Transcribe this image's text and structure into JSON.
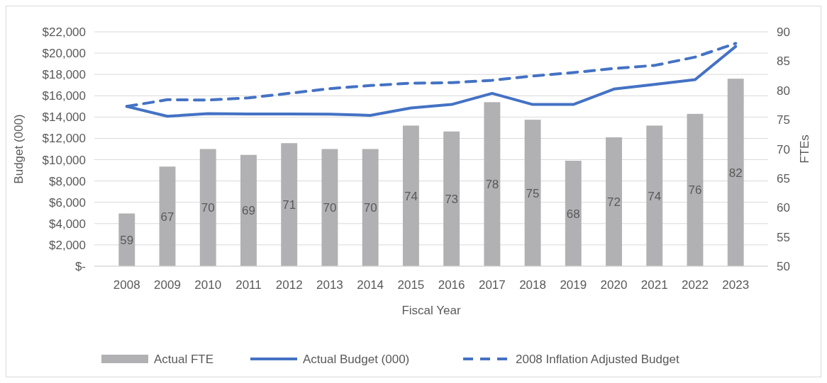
{
  "chart_data": {
    "type": "bar",
    "xlabel": "Fiscal Year",
    "ylabel": "Budget (000)",
    "y2label": "FTEs",
    "categories": [
      "2008",
      "2009",
      "2010",
      "2011",
      "2012",
      "2013",
      "2014",
      "2015",
      "2016",
      "2017",
      "2018",
      "2019",
      "2020",
      "2021",
      "2022",
      "2023"
    ],
    "series": [
      {
        "name": "Actual FTE",
        "axis": "y2",
        "color": "#b1b1b4",
        "values": [
          59,
          67,
          70,
          69,
          71,
          70,
          70,
          74,
          73,
          78,
          75,
          68,
          72,
          74,
          76,
          82
        ],
        "value_labels": [
          "59",
          "67",
          "70",
          "69",
          "71",
          "70",
          "70",
          "74",
          "73",
          "78",
          "75",
          "68",
          "72",
          "74",
          "76",
          "82"
        ]
      },
      {
        "name": "Actual Budget (000)",
        "type": "line",
        "line_style": "solid",
        "color": "#4472c4",
        "values": [
          15000,
          14070,
          14330,
          14290,
          14290,
          14280,
          14160,
          14850,
          15180,
          16230,
          15180,
          15180,
          16630,
          17070,
          17510,
          20630
        ]
      },
      {
        "name": "2008 Inflation Adjusted Budget",
        "type": "line",
        "line_style": "dashed",
        "color": "#4472c4",
        "values": [
          15000,
          15630,
          15600,
          15800,
          16230,
          16670,
          16960,
          17180,
          17230,
          17450,
          17850,
          18180,
          18560,
          18850,
          19630,
          20920
        ]
      }
    ],
    "ylim": [
      0,
      22000
    ],
    "yticks": [
      {
        "value": 0,
        "label": "$-"
      },
      {
        "value": 2000,
        "label": "$2,000"
      },
      {
        "value": 4000,
        "label": "$4,000"
      },
      {
        "value": 6000,
        "label": "$6,000"
      },
      {
        "value": 8000,
        "label": "$8,000"
      },
      {
        "value": 10000,
        "label": "$10,000"
      },
      {
        "value": 12000,
        "label": "$12,000"
      },
      {
        "value": 14000,
        "label": "$14,000"
      },
      {
        "value": 16000,
        "label": "$16,000"
      },
      {
        "value": 18000,
        "label": "$18,000"
      },
      {
        "value": 20000,
        "label": "$20,000"
      },
      {
        "value": 22000,
        "label": "$22,000"
      }
    ],
    "y2lim": [
      50,
      90
    ],
    "y2ticks": [
      50,
      55,
      60,
      65,
      70,
      75,
      80,
      85,
      90
    ],
    "grid": "y",
    "legend": "bottom"
  }
}
